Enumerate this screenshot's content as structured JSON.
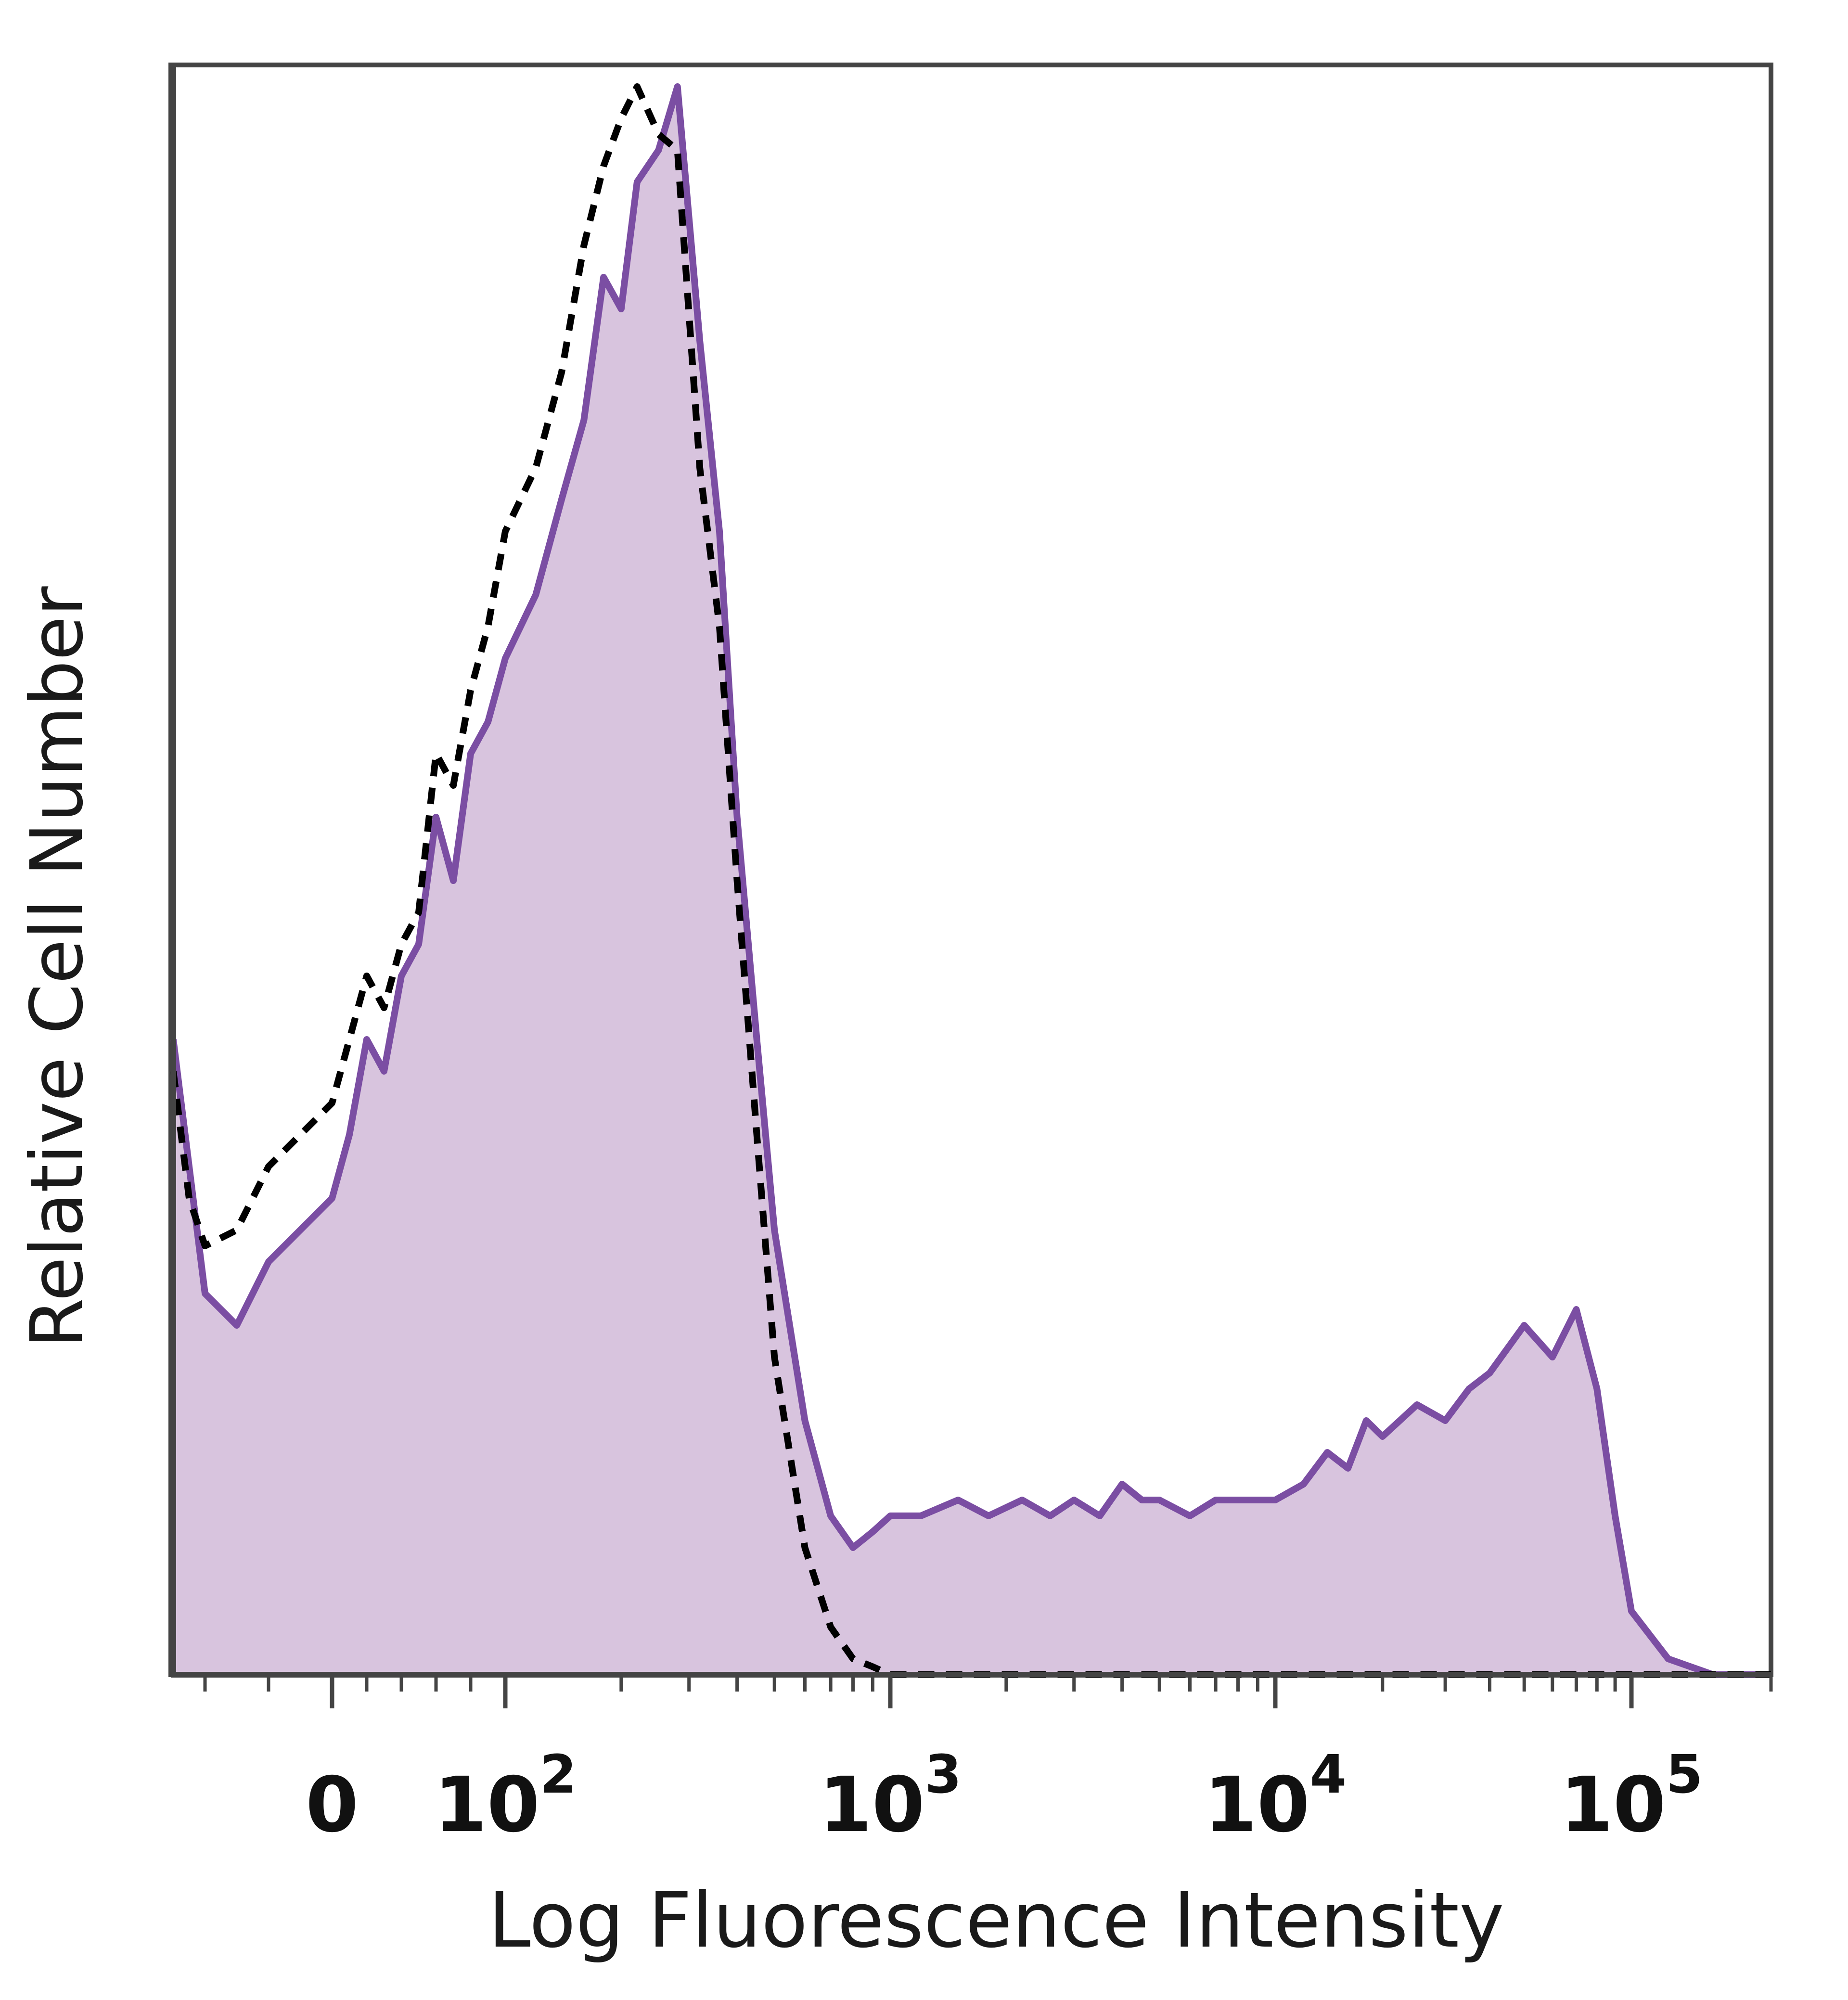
{
  "chart_data": {
    "type": "area",
    "title": "",
    "xlabel": "Log Fluorescence Intensity",
    "ylabel": "Relative Cell Number",
    "x_scale": "biexponential",
    "xlim": [
      -50,
      200000
    ],
    "ylim": [
      0,
      100
    ],
    "grid": false,
    "legend": "none",
    "x_tick_labels": [
      {
        "value": 0,
        "base": "0",
        "exp": ""
      },
      {
        "value": 100,
        "base": "10",
        "exp": "2"
      },
      {
        "value": 1000,
        "base": "10",
        "exp": "3"
      },
      {
        "value": 10000,
        "base": "10",
        "exp": "4"
      },
      {
        "value": 100000,
        "base": "10",
        "exp": "5"
      }
    ],
    "series": [
      {
        "style": "filled",
        "color": "#7B4EA3",
        "fill": "#D8C4DE",
        "x": [
          -50,
          -45,
          -40,
          -30,
          -20,
          -10,
          0,
          10,
          20,
          30,
          40,
          50,
          60,
          70,
          80,
          90,
          100,
          120,
          140,
          160,
          180,
          200,
          220,
          250,
          280,
          320,
          360,
          400,
          450,
          500,
          600,
          700,
          800,
          900,
          1000,
          1200,
          1500,
          1800,
          2200,
          2600,
          3000,
          3500,
          4000,
          4500,
          5000,
          6000,
          7000,
          8000,
          9000,
          10000,
          12000,
          14000,
          16000,
          18000,
          20000,
          25000,
          30000,
          35000,
          40000,
          50000,
          60000,
          70000,
          80000,
          90000,
          100000,
          120000,
          150000,
          200000
        ],
        "y": [
          40,
          32,
          24,
          22,
          26,
          28,
          30,
          34,
          40,
          38,
          44,
          46,
          54,
          50,
          58,
          60,
          64,
          68,
          74,
          79,
          88,
          86,
          94,
          96,
          100,
          84,
          72,
          54,
          40,
          28,
          16,
          10,
          8,
          9,
          10,
          10,
          11,
          10,
          11,
          10,
          11,
          10,
          12,
          11,
          11,
          10,
          11,
          11,
          11,
          11,
          12,
          14,
          13,
          16,
          15,
          17,
          16,
          18,
          19,
          22,
          20,
          23,
          18,
          10,
          4,
          1,
          0,
          0
        ]
      },
      {
        "style": "dashed",
        "color": "#000000",
        "x": [
          -50,
          -45,
          -40,
          -30,
          -20,
          -10,
          0,
          10,
          20,
          30,
          40,
          50,
          60,
          70,
          80,
          90,
          100,
          120,
          140,
          160,
          180,
          200,
          220,
          250,
          280,
          320,
          360,
          400,
          450,
          500,
          600,
          700,
          800,
          900,
          1000,
          1200,
          1500,
          2000,
          5000,
          10000,
          50000,
          100000,
          200000
        ],
        "y": [
          38,
          30,
          27,
          28,
          32,
          34,
          36,
          40,
          44,
          42,
          46,
          48,
          58,
          56,
          62,
          66,
          72,
          76,
          82,
          90,
          95,
          98,
          100,
          97,
          96,
          76,
          66,
          50,
          34,
          20,
          8,
          3,
          1,
          0.5,
          0,
          0,
          0,
          0,
          0,
          0,
          0,
          0,
          0
        ]
      }
    ]
  }
}
